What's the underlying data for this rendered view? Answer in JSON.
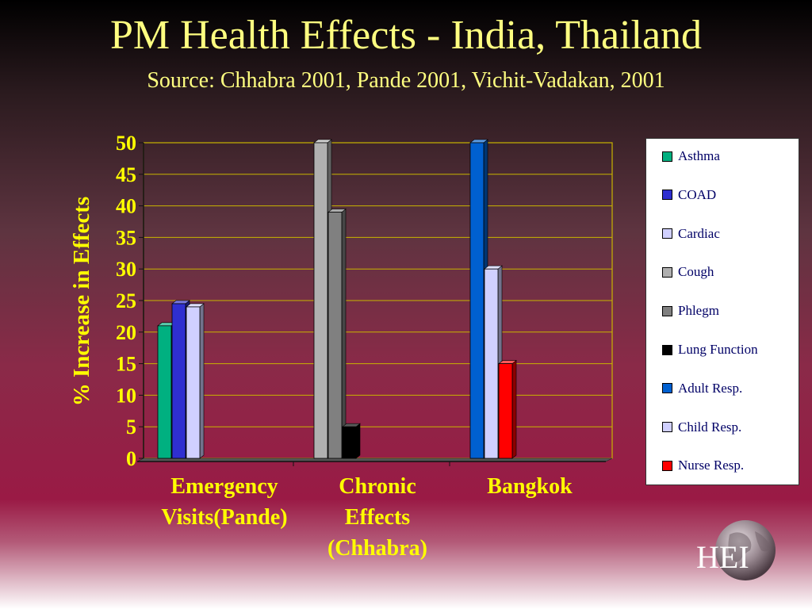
{
  "title": "PM Health Effects - India, Thailand",
  "subtitle": "Source: Chhabra 2001, Pande 2001, Vichit-Vadakan, 2001",
  "logo_text": "HEI",
  "chart_data": {
    "type": "bar",
    "ylabel": "% Increase in Effects",
    "ylim": [
      0,
      50
    ],
    "yticks": [
      "0",
      "5",
      "10",
      "15",
      "20",
      "25",
      "30",
      "35",
      "40",
      "45",
      "50"
    ],
    "categories": [
      "Emergency Visits(Pande)",
      "Chronic Effects (Chhabra)",
      "Bangkok"
    ],
    "category_lines": [
      [
        "Emergency",
        "Visits(Pande)"
      ],
      [
        "Chronic",
        "Effects",
        "(Chhabra)"
      ],
      [
        "Bangkok"
      ]
    ],
    "grid": true,
    "legend_position": "right",
    "series": [
      {
        "name": "Asthma",
        "color": "#00b080",
        "values": [
          21,
          null,
          null
        ]
      },
      {
        "name": "COAD",
        "color": "#2f2fd0",
        "values": [
          24.5,
          null,
          null
        ]
      },
      {
        "name": "Cardiac",
        "color": "#d0d0ff",
        "values": [
          24,
          null,
          null
        ]
      },
      {
        "name": "Cough",
        "color": "#b0b0b0",
        "values": [
          null,
          50,
          null
        ]
      },
      {
        "name": "Phlegm",
        "color": "#808080",
        "values": [
          null,
          39,
          null
        ]
      },
      {
        "name": "Lung Function",
        "color": "#000000",
        "values": [
          null,
          5,
          null
        ]
      },
      {
        "name": "Adult Resp.",
        "color": "#0060d0",
        "values": [
          null,
          null,
          50
        ]
      },
      {
        "name": "Child Resp.",
        "color": "#d0d0ff",
        "values": [
          null,
          null,
          30
        ]
      },
      {
        "name": "Nurse Resp.",
        "color": "#ff0000",
        "values": [
          null,
          null,
          15
        ]
      }
    ]
  }
}
